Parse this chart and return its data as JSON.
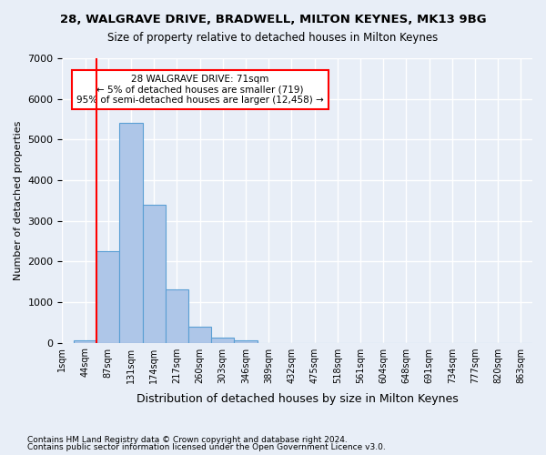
{
  "title_line1": "28, WALGRAVE DRIVE, BRADWELL, MILTON KEYNES, MK13 9BG",
  "title_line2": "Size of property relative to detached houses in Milton Keynes",
  "xlabel": "Distribution of detached houses by size in Milton Keynes",
  "ylabel": "Number of detached properties",
  "footnote1": "Contains HM Land Registry data © Crown copyright and database right 2024.",
  "footnote2": "Contains public sector information licensed under the Open Government Licence v3.0.",
  "annotation_title": "28 WALGRAVE DRIVE: 71sqm",
  "annotation_line1": "← 5% of detached houses are smaller (719)",
  "annotation_line2": "95% of semi-detached houses are larger (12,458) →",
  "bin_labels": [
    "1sqm",
    "44sqm",
    "87sqm",
    "131sqm",
    "174sqm",
    "217sqm",
    "260sqm",
    "303sqm",
    "346sqm",
    "389sqm",
    "432sqm",
    "475sqm",
    "518sqm",
    "561sqm",
    "604sqm",
    "648sqm",
    "691sqm",
    "734sqm",
    "777sqm",
    "820sqm",
    "863sqm"
  ],
  "bar_values": [
    50,
    2250,
    5400,
    3400,
    1300,
    400,
    130,
    50,
    0,
    0,
    0,
    0,
    0,
    0,
    0,
    0,
    0,
    0,
    0,
    0
  ],
  "bar_color": "#aec6e8",
  "bar_edge_color": "#5a9fd4",
  "background_color": "#e8eef7",
  "grid_color": "#ffffff",
  "red_line_x": 1,
  "ylim": [
    0,
    7000
  ],
  "yticks": [
    0,
    1000,
    2000,
    3000,
    4000,
    5000,
    6000,
    7000
  ],
  "figsize": [
    6.0,
    5.0
  ],
  "dpi": 100
}
